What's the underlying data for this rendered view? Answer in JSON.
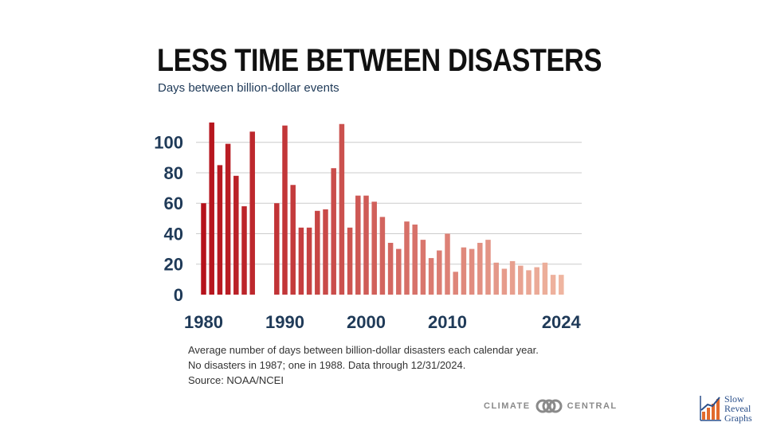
{
  "header": {
    "title": "LESS TIME BETWEEN DISASTERS",
    "subtitle": "Days between billion-dollar events"
  },
  "notes": {
    "line1": "Average number of days between billion-dollar disasters each calendar year.",
    "line2": "No disasters in 1987; one in 1988. Data through 12/31/2024.",
    "line3": "Source: NOAA/NCEI"
  },
  "logos": {
    "climate_central": {
      "left_word": "CLIMATE",
      "right_word": "CENTRAL",
      "icon": "linked-circles-icon"
    },
    "slow_reveal_graphs": {
      "line1": "Slow",
      "line2": "Reveal",
      "line3": "Graphs",
      "icon": "bar-chart-arrow-icon"
    }
  },
  "colors": {
    "bar_start": "#b5121b",
    "bar_end": "#efb5a0",
    "axis_text": "#1f3a58",
    "gridline": "#cccccc"
  },
  "chart_data": {
    "type": "bar",
    "categories": [
      "1980",
      "1981",
      "1982",
      "1983",
      "1984",
      "1985",
      "1986",
      "1987",
      "1988",
      "1989",
      "1990",
      "1991",
      "1992",
      "1993",
      "1994",
      "1995",
      "1996",
      "1997",
      "1998",
      "1999",
      "2000",
      "2001",
      "2002",
      "2003",
      "2004",
      "2005",
      "2006",
      "2007",
      "2008",
      "2009",
      "2010",
      "2011",
      "2012",
      "2013",
      "2014",
      "2015",
      "2016",
      "2017",
      "2018",
      "2019",
      "2020",
      "2021",
      "2022",
      "2023",
      "2024"
    ],
    "values": [
      60,
      113,
      85,
      99,
      78,
      58,
      107,
      null,
      null,
      60,
      111,
      72,
      44,
      44,
      55,
      56,
      83,
      112,
      44,
      65,
      65,
      61,
      51,
      34,
      30,
      48,
      46,
      36,
      24,
      29,
      40,
      15,
      31,
      30,
      34,
      36,
      21,
      17,
      22,
      19,
      16,
      18,
      21,
      13,
      13
    ],
    "xticks": [
      "1980",
      "1990",
      "2000",
      "2010",
      "2024"
    ],
    "yticks": [
      0,
      20,
      40,
      60,
      80,
      100
    ],
    "ylim": [
      0,
      115
    ],
    "grid": true,
    "xlabel": "",
    "ylabel": ""
  }
}
